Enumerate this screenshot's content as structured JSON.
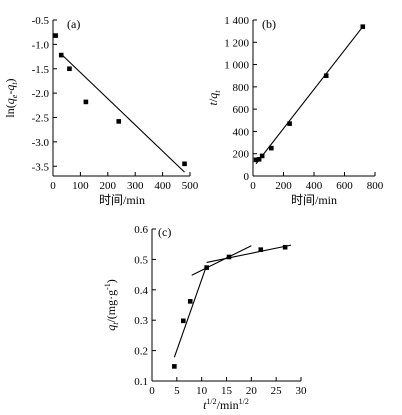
{
  "chart_data": [
    {
      "type": "scatter",
      "panel_label": "(a)",
      "xlabel": "时间/min",
      "ylabel": "ln(qe-qt)",
      "xlim": [
        0,
        500
      ],
      "ylim": [
        -3.7,
        -0.5
      ],
      "xticks": [
        "0",
        "100",
        "200",
        "300",
        "400",
        "500"
      ],
      "yticks": [
        "-0.5",
        "-1.0",
        "-1.5",
        "-2.0",
        "-2.5",
        "-3.0",
        "-3.5"
      ],
      "series": [
        {
          "points": [
            [
              10,
              -0.82
            ],
            [
              30,
              -1.22
            ],
            [
              60,
              -1.5
            ],
            [
              120,
              -2.18
            ],
            [
              240,
              -2.58
            ],
            [
              480,
              -3.45
            ]
          ]
        }
      ],
      "fit_lines": [
        {
          "from": [
            30,
            -1.2
          ],
          "to": [
            480,
            -3.62
          ]
        }
      ]
    },
    {
      "type": "scatter",
      "panel_label": "(b)",
      "xlabel": "时间/min",
      "ylabel": "t/qt",
      "xlim": [
        0,
        800
      ],
      "ylim": [
        0,
        1400
      ],
      "xticks": [
        "0",
        "200",
        "400",
        "600",
        "800"
      ],
      "yticks": [
        "0",
        "200",
        "400",
        "600",
        "800",
        "1 000",
        "1 200",
        "1 400"
      ],
      "series": [
        {
          "points": [
            [
              20,
              145
            ],
            [
              40,
              150
            ],
            [
              60,
              180
            ],
            [
              120,
              250
            ],
            [
              240,
              470
            ],
            [
              480,
              900
            ],
            [
              720,
              1340
            ]
          ]
        }
      ],
      "fit_lines": [
        {
          "from": [
            20,
            110
          ],
          "to": [
            720,
            1340
          ]
        }
      ]
    },
    {
      "type": "scatter",
      "panel_label": "(c)",
      "xlabel": "t1/2/min1/2",
      "ylabel": "qt/(mg·g-1)",
      "xlim": [
        0,
        30
      ],
      "ylim": [
        0.1,
        0.6
      ],
      "xticks": [
        "0",
        "5",
        "10",
        "15",
        "20",
        "25",
        "30"
      ],
      "yticks": [
        "0.1",
        "0.2",
        "0.3",
        "0.4",
        "0.5",
        "0.6"
      ],
      "series": [
        {
          "points": [
            [
              4.5,
              0.148
            ],
            [
              6.3,
              0.298
            ],
            [
              7.7,
              0.362
            ],
            [
              11.0,
              0.473
            ],
            [
              15.5,
              0.508
            ],
            [
              21.9,
              0.532
            ],
            [
              26.8,
              0.54
            ]
          ]
        }
      ],
      "fit_lines": [
        {
          "from": [
            4.5,
            0.178
          ],
          "to": [
            11.0,
            0.48
          ]
        },
        {
          "from": [
            8.0,
            0.448
          ],
          "to": [
            20.0,
            0.545
          ]
        },
        {
          "from": [
            11.0,
            0.49
          ],
          "to": [
            28.0,
            0.547
          ]
        }
      ]
    }
  ]
}
